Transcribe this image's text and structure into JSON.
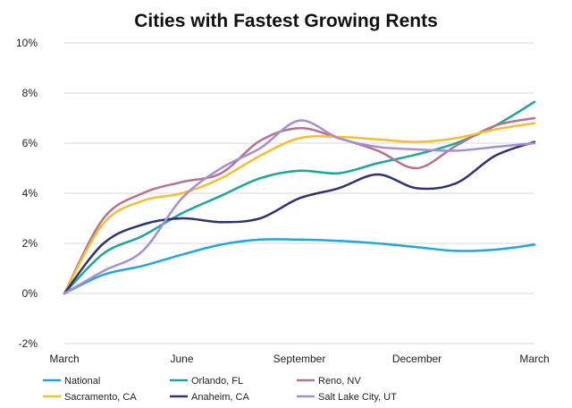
{
  "chart_data": {
    "type": "line",
    "title": "Cities with Fastest Growing Rents",
    "xlabel": "",
    "ylabel": "",
    "x": [
      0,
      1,
      2,
      3,
      4,
      5,
      6,
      7,
      8,
      9,
      10,
      11,
      12
    ],
    "x_tick_labels": [
      {
        "x": 0,
        "label": "March"
      },
      {
        "x": 3,
        "label": "June"
      },
      {
        "x": 6,
        "label": "September"
      },
      {
        "x": 9,
        "label": "December"
      },
      {
        "x": 12,
        "label": "March"
      }
    ],
    "y_ticks": [
      -2,
      0,
      2,
      4,
      6,
      8,
      10
    ],
    "y_tick_format": "{v}%",
    "ylim": [
      -2,
      10
    ],
    "grid": true,
    "legend_position": "bottom",
    "series": [
      {
        "name": "National",
        "color": "#1fa8e0",
        "values": [
          0,
          0.75,
          1.1,
          1.55,
          1.95,
          2.15,
          2.15,
          2.1,
          2.0,
          1.85,
          1.7,
          1.75,
          1.95
        ]
      },
      {
        "name": "Orlando, FL",
        "color": "#1aa89c",
        "values": [
          0,
          1.6,
          2.3,
          3.2,
          3.9,
          4.6,
          4.9,
          4.8,
          5.2,
          5.55,
          6.0,
          6.7,
          7.65
        ]
      },
      {
        "name": "Reno, NV",
        "color": "#b5738f",
        "values": [
          0,
          3.0,
          4.0,
          4.45,
          4.8,
          6.1,
          6.6,
          6.2,
          5.7,
          5.0,
          5.9,
          6.7,
          7.0
        ]
      },
      {
        "name": "Sacramento, CA",
        "color": "#f5bf2d",
        "values": [
          0,
          2.8,
          3.7,
          4.0,
          4.6,
          5.5,
          6.2,
          6.25,
          6.15,
          6.05,
          6.2,
          6.55,
          6.8
        ]
      },
      {
        "name": "Anaheim, CA",
        "color": "#2e3472",
        "values": [
          0,
          2.0,
          2.75,
          3.0,
          2.85,
          3.0,
          3.8,
          4.2,
          4.75,
          4.2,
          4.4,
          5.5,
          6.05
        ]
      },
      {
        "name": "Salt Lake City, UT",
        "color": "#a58ed6",
        "values": [
          0,
          0.9,
          1.7,
          3.8,
          5.0,
          5.8,
          6.9,
          6.2,
          5.85,
          5.75,
          5.7,
          5.85,
          6.0
        ]
      }
    ]
  }
}
